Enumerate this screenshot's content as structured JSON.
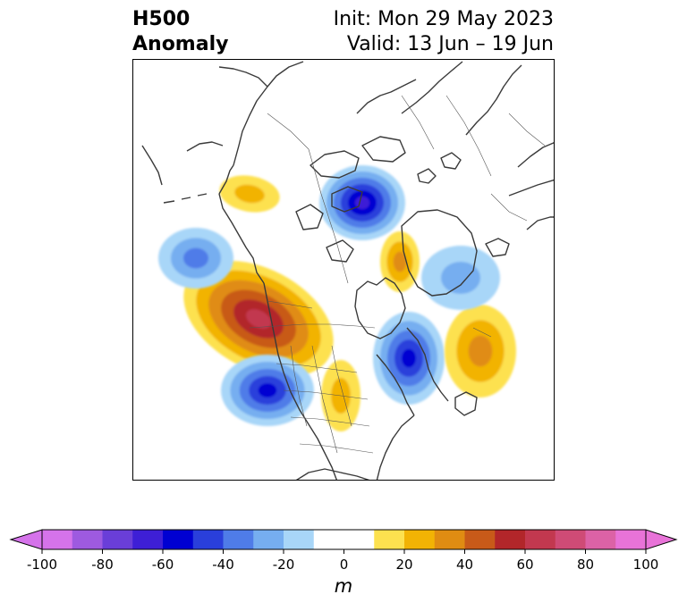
{
  "title": {
    "left_line1": "H500",
    "left_line2": "Anomaly",
    "right_line1": "Init: Mon 29 May 2023",
    "right_line2": "Valid: 13 Jun – 19 Jun"
  },
  "colorbar": {
    "unit": "m",
    "min": -100,
    "max": 100,
    "step": 10,
    "extend": "both",
    "ticks": [
      -100,
      -80,
      -60,
      -40,
      -20,
      0,
      20,
      40,
      60,
      80,
      100
    ],
    "tick_labels": [
      "-100",
      "-80",
      "-60",
      "-40",
      "-20",
      "0",
      "20",
      "40",
      "60",
      "80",
      "100"
    ],
    "colors": [
      "#d573ea",
      "#9e5ae0",
      "#6a3ed8",
      "#3e1fd6",
      "#0000d2",
      "#2a3fdb",
      "#4f7ce8",
      "#76aef0",
      "#a8d6f8",
      "#ffffff",
      "#ffffff",
      "#fde14f",
      "#f2b304",
      "#e08c12",
      "#c85a19",
      "#b2262a",
      "#c2384f",
      "#cf4b76",
      "#dc62a6",
      "#e873d8"
    ],
    "over_color": "#e873d8",
    "under_color": "#d573ea"
  },
  "map": {
    "projection": "polar stereographic, North Pole centered",
    "field": "500 hPa geopotential height anomaly",
    "anomaly_centers": [
      {
        "region": "Hudson Bay / Canadian Arctic",
        "sign": "negative",
        "peak_m": -60
      },
      {
        "region": "Gulf of Alaska (west of British Columbia)",
        "sign": "positive",
        "peak_m": 60
      },
      {
        "region": "Western United States",
        "sign": "negative",
        "peak_m": -50
      },
      {
        "region": "Northwest Atlantic near Newfoundland",
        "sign": "negative",
        "peak_m": -50
      },
      {
        "region": "Central Atlantic",
        "sign": "positive",
        "peak_m": 30
      },
      {
        "region": "North Pacific",
        "sign": "negative",
        "peak_m": -30
      },
      {
        "region": "Eastern Siberia / Okhotsk",
        "sign": "negative",
        "peak_m": -20
      },
      {
        "region": "Central Arctic Ocean",
        "sign": "positive",
        "peak_m": 30
      },
      {
        "region": "Alaska / Bering",
        "sign": "positive",
        "peak_m": 20
      },
      {
        "region": "Great Lakes",
        "sign": "positive",
        "peak_m": 20
      }
    ]
  }
}
